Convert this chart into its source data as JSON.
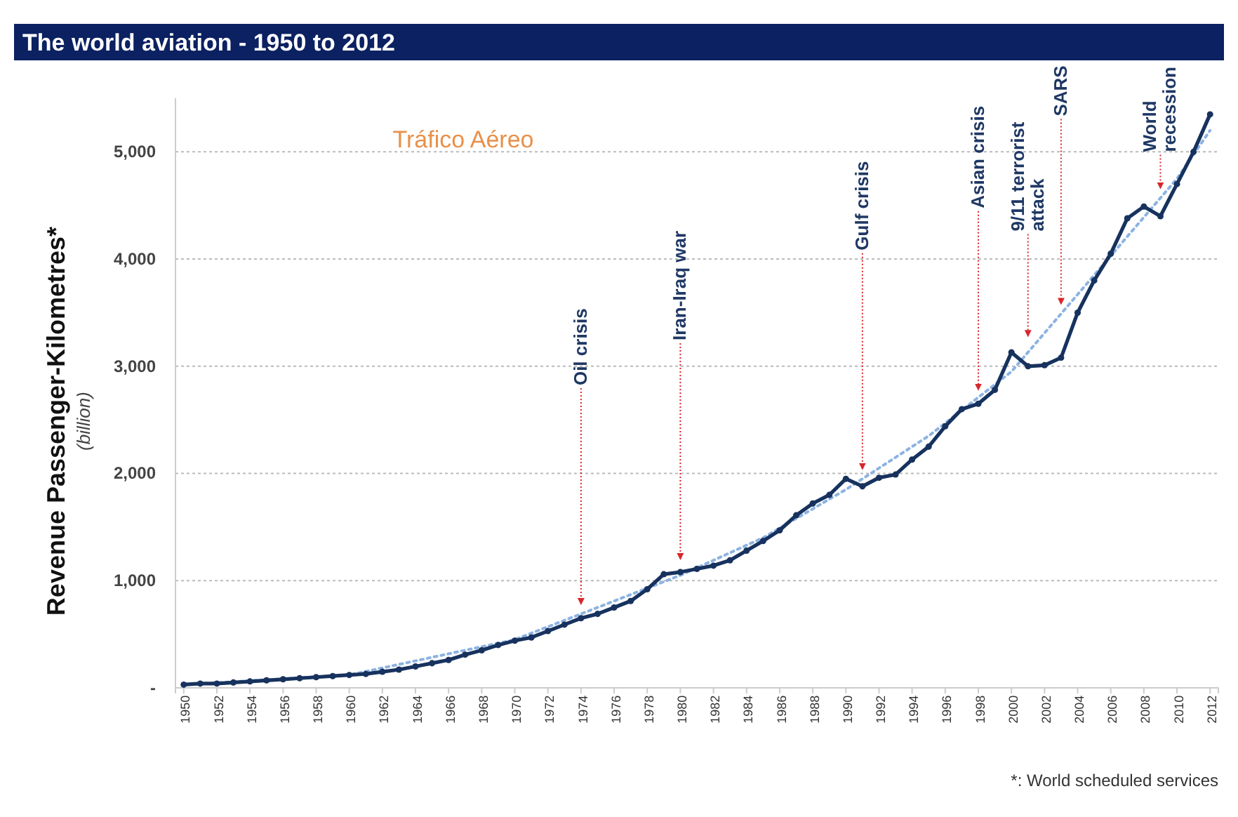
{
  "chart_data": {
    "type": "line",
    "title": "The world aviation - 1950 to 2012",
    "subtitle": "Tráfico Aéreo",
    "ylabel": "Revenue Passenger-Kilometres*\n(billion)",
    "xlim": [
      1949.5,
      2012.5
    ],
    "xticks": [
      1950,
      1952,
      1954,
      1956,
      1958,
      1960,
      1962,
      1964,
      1966,
      1968,
      1970,
      1972,
      1974,
      1976,
      1978,
      1980,
      1982,
      1984,
      1986,
      1988,
      1990,
      1992,
      1994,
      1996,
      1998,
      2000,
      2002,
      2004,
      2006,
      2008,
      2010,
      2012
    ],
    "ylim": [
      0,
      5500
    ],
    "yticks": [
      {
        "value": 0,
        "label": "-"
      },
      {
        "value": 1000,
        "label": "1,000"
      },
      {
        "value": 2000,
        "label": "2,000"
      },
      {
        "value": 3000,
        "label": "3,000"
      },
      {
        "value": 4000,
        "label": "4,000"
      },
      {
        "value": 5000,
        "label": "5,000"
      }
    ],
    "grid": "y",
    "marker": "circle",
    "line_style": "solid",
    "series": [
      {
        "color": "#8db3e2",
        "line_style": "dotted",
        "marker": "none",
        "x": [
          1950,
          1960,
          1970,
          1980,
          1985,
          1990,
          1995,
          2000,
          2005,
          2010,
          2012
        ],
        "values": [
          30,
          120,
          450,
          1050,
          1400,
          1850,
          2350,
          2950,
          3850,
          4750,
          5200
        ]
      },
      {
        "color": "#17325e",
        "x": [
          1950,
          1951,
          1952,
          1953,
          1954,
          1955,
          1956,
          1957,
          1958,
          1959,
          1960,
          1961,
          1962,
          1963,
          1964,
          1965,
          1966,
          1967,
          1968,
          1969,
          1970,
          1971,
          1972,
          1973,
          1974,
          1975,
          1976,
          1977,
          1978,
          1979,
          1980,
          1981,
          1982,
          1983,
          1984,
          1985,
          1986,
          1987,
          1988,
          1989,
          1990,
          1991,
          1992,
          1993,
          1994,
          1995,
          1996,
          1997,
          1998,
          1999,
          2000,
          2001,
          2002,
          2003,
          2004,
          2005,
          2006,
          2007,
          2008,
          2009,
          2010,
          2011,
          2012
        ],
        "values": [
          30,
          40,
          40,
          50,
          60,
          70,
          80,
          90,
          100,
          110,
          120,
          130,
          150,
          170,
          200,
          230,
          260,
          310,
          350,
          400,
          440,
          470,
          530,
          590,
          650,
          690,
          750,
          810,
          920,
          1060,
          1080,
          1110,
          1140,
          1190,
          1280,
          1370,
          1470,
          1610,
          1720,
          1800,
          1950,
          1880,
          1960,
          1990,
          2130,
          2250,
          2440,
          2600,
          2650,
          2780,
          3130,
          3000,
          3010,
          3080,
          3500,
          3800,
          4050,
          4380,
          4490,
          4400,
          4700,
          5000,
          5350
        ]
      }
    ],
    "annotations": [
      {
        "text": "Oil crisis",
        "x": 1974,
        "y": 700
      },
      {
        "text": "Iran-Iraq war",
        "x": 1980,
        "y": 1120
      },
      {
        "text": "Gulf crisis",
        "x": 1991,
        "y": 1960
      },
      {
        "text": "Asian crisis",
        "x": 1998,
        "y": 2700
      },
      {
        "text": "9/11 terrorist attack",
        "x": 2001,
        "y": 3200
      },
      {
        "text": "SARS",
        "x": 2003,
        "y": 3500
      },
      {
        "text": "World recession",
        "x": 2009,
        "y": 4580
      },
      "*: World scheduled services"
    ]
  }
}
